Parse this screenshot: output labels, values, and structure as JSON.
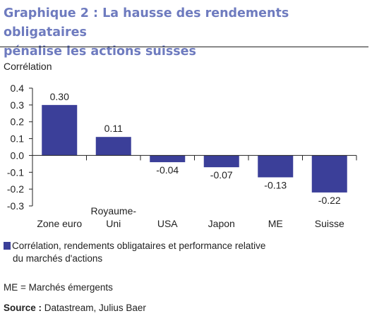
{
  "title_line1": "Graphique 2 : La hausse des rendements obligataires",
  "title_line2": "pénalise les actions suisses",
  "chart_data": {
    "type": "bar",
    "ylabel": "Corrélation",
    "categories": [
      "Zone euro",
      "Royaume-Uni",
      "USA",
      "Japon",
      "ME",
      "Suisse"
    ],
    "category_lines": [
      [
        "Zone euro"
      ],
      [
        "Royaume-",
        "Uni"
      ],
      [
        "USA"
      ],
      [
        "Japon"
      ],
      [
        "ME"
      ],
      [
        "Suisse"
      ]
    ],
    "values": [
      0.3,
      0.11,
      -0.04,
      -0.07,
      -0.13,
      -0.22
    ],
    "value_labels": [
      "0.30",
      "0.11",
      "-0.04",
      "-0.07",
      "-0.13",
      "-0.22"
    ],
    "ylim": [
      -0.3,
      0.4
    ],
    "yticks": [
      0.4,
      0.3,
      0.2,
      0.1,
      0.0,
      -0.1,
      -0.2,
      -0.3
    ],
    "ytick_labels": [
      "0.4",
      "0.3",
      "0.2",
      "0.1",
      "0.0",
      "-0.1",
      "-0.2",
      "-0.3"
    ],
    "bar_color": "#3b3f99",
    "grid": false
  },
  "legend": {
    "line1": "Corrélation, rendements obligataires et performance relative",
    "line2": "du marchés d'actions"
  },
  "note": "ME = Marchés émergents",
  "source_label": "Source :",
  "source_text": "Datastream, Julius Baer"
}
